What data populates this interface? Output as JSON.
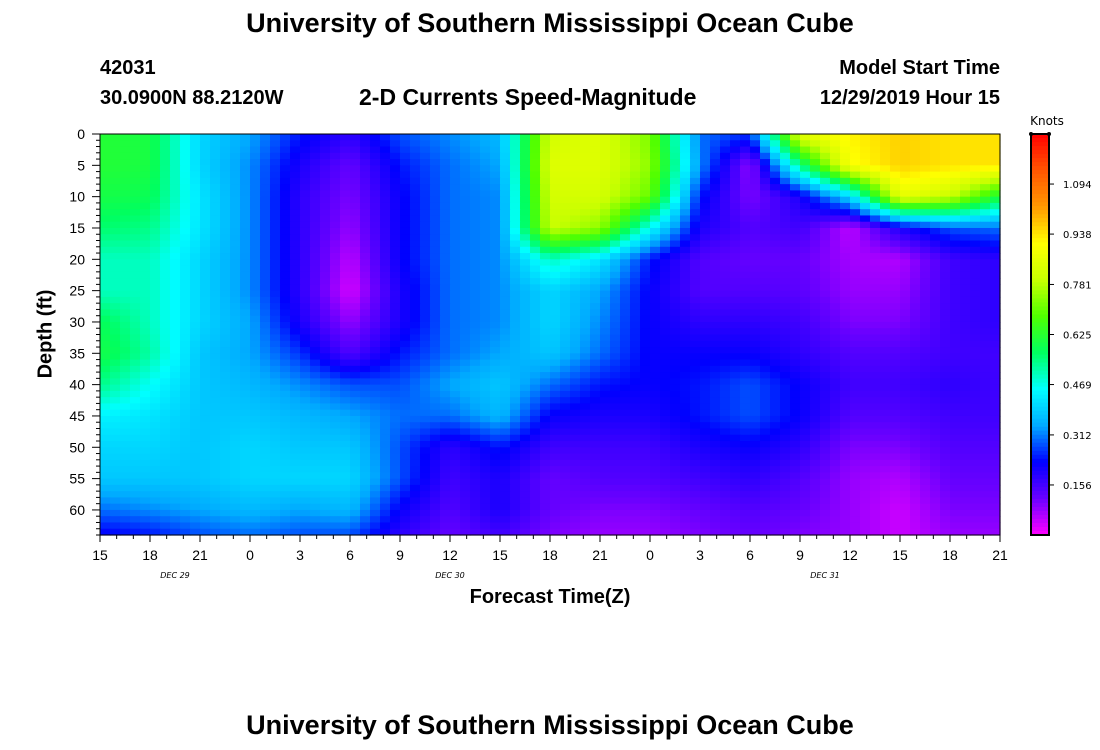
{
  "page_title": "University of Southern Mississippi Ocean Cube",
  "footer_title": "University of Southern Mississippi Ocean Cube",
  "station": {
    "id": "42031",
    "location": "30.0900N 88.2120W"
  },
  "plot_title": "2-D Currents Speed-Magnitude",
  "model": {
    "label": "Model Start Time",
    "value": "12/29/2019 Hour 15"
  },
  "chart_data": {
    "type": "heatmap",
    "title": "2-D Currents Speed-Magnitude",
    "xlabel": "Forecast Time(Z)",
    "ylabel": "Depth (ft)",
    "x_ticks": [
      "15",
      "18",
      "21",
      "0",
      "3",
      "6",
      "9",
      "12",
      "15",
      "18",
      "21",
      "0",
      "3",
      "6",
      "9",
      "12",
      "15",
      "18",
      "21"
    ],
    "x_hours_since_start": [
      0,
      3,
      6,
      9,
      12,
      15,
      18,
      21,
      24,
      27,
      30,
      33,
      36,
      39,
      42,
      45,
      48,
      51,
      54
    ],
    "xlim_hours": [
      0,
      54
    ],
    "date_labels": [
      {
        "text": "DEC  29",
        "hour": 4.5
      },
      {
        "text": "DEC  30",
        "hour": 21
      },
      {
        "text": "DEC  31",
        "hour": 43.5
      }
    ],
    "y_ticks": [
      0,
      5,
      10,
      15,
      20,
      25,
      30,
      35,
      40,
      45,
      50,
      55,
      60
    ],
    "ylim": [
      0,
      64
    ],
    "y_inverted": true,
    "colorbar": {
      "title": "Knots",
      "ticks": [
        "1.094",
        "0.938",
        "0.781",
        "0.625",
        "0.469",
        "0.312",
        "0.156"
      ],
      "tick_values": [
        1.094,
        0.938,
        0.781,
        0.625,
        0.469,
        0.312,
        0.156
      ],
      "range": [
        0.0,
        1.25
      ],
      "colors": [
        "#ff00ff",
        "#6a00ff",
        "#0000ff",
        "#00aaff",
        "#00ffff",
        "#00ff60",
        "#50ff00",
        "#c8ff00",
        "#ffff00",
        "#ff9900",
        "#ff5500",
        "#ff0000"
      ]
    },
    "sample_depths_ft": [
      0,
      5,
      10,
      15,
      20,
      25,
      30,
      35,
      40,
      45,
      50,
      55,
      60,
      64
    ],
    "sample_hours": [
      0,
      3,
      6,
      9,
      12,
      15,
      18,
      21,
      24,
      27,
      30,
      33,
      36,
      39,
      42,
      45,
      48,
      51,
      54
    ],
    "grid_knots": [
      [
        0.62,
        0.6,
        0.4,
        0.34,
        0.24,
        0.18,
        0.28,
        0.32,
        0.36,
        0.82,
        0.84,
        0.72,
        0.3,
        0.26,
        0.86,
        0.92,
        0.96,
        0.94,
        0.94
      ],
      [
        0.62,
        0.6,
        0.4,
        0.32,
        0.2,
        0.12,
        0.24,
        0.3,
        0.34,
        0.84,
        0.84,
        0.74,
        0.32,
        0.08,
        0.54,
        0.9,
        0.96,
        0.94,
        0.94
      ],
      [
        0.6,
        0.58,
        0.42,
        0.32,
        0.18,
        0.1,
        0.22,
        0.3,
        0.32,
        0.82,
        0.82,
        0.7,
        0.24,
        0.1,
        0.2,
        0.4,
        0.86,
        0.8,
        0.6
      ],
      [
        0.56,
        0.54,
        0.42,
        0.32,
        0.18,
        0.08,
        0.22,
        0.3,
        0.32,
        0.8,
        0.74,
        0.46,
        0.2,
        0.14,
        0.16,
        0.05,
        0.2,
        0.28,
        0.3
      ],
      [
        0.5,
        0.5,
        0.4,
        0.32,
        0.18,
        0.05,
        0.22,
        0.3,
        0.32,
        0.5,
        0.42,
        0.24,
        0.14,
        0.12,
        0.12,
        0.07,
        0.06,
        0.16,
        0.18
      ],
      [
        0.5,
        0.5,
        0.4,
        0.32,
        0.18,
        0.03,
        0.2,
        0.3,
        0.32,
        0.4,
        0.34,
        0.22,
        0.14,
        0.14,
        0.13,
        0.08,
        0.08,
        0.16,
        0.18
      ],
      [
        0.58,
        0.5,
        0.4,
        0.34,
        0.2,
        0.08,
        0.2,
        0.3,
        0.32,
        0.4,
        0.32,
        0.22,
        0.18,
        0.18,
        0.16,
        0.1,
        0.1,
        0.16,
        0.18
      ],
      [
        0.6,
        0.52,
        0.38,
        0.34,
        0.26,
        0.14,
        0.24,
        0.3,
        0.34,
        0.38,
        0.3,
        0.22,
        0.22,
        0.22,
        0.18,
        0.14,
        0.14,
        0.16,
        0.16
      ],
      [
        0.54,
        0.46,
        0.38,
        0.36,
        0.32,
        0.28,
        0.28,
        0.34,
        0.38,
        0.3,
        0.24,
        0.22,
        0.24,
        0.28,
        0.22,
        0.16,
        0.16,
        0.18,
        0.16
      ],
      [
        0.44,
        0.42,
        0.38,
        0.38,
        0.36,
        0.34,
        0.3,
        0.3,
        0.36,
        0.22,
        0.2,
        0.2,
        0.24,
        0.28,
        0.22,
        0.14,
        0.14,
        0.16,
        0.16
      ],
      [
        0.4,
        0.4,
        0.38,
        0.4,
        0.38,
        0.38,
        0.28,
        0.18,
        0.24,
        0.16,
        0.16,
        0.16,
        0.2,
        0.22,
        0.18,
        0.1,
        0.1,
        0.14,
        0.14
      ],
      [
        0.38,
        0.38,
        0.38,
        0.4,
        0.4,
        0.4,
        0.28,
        0.16,
        0.2,
        0.12,
        0.14,
        0.14,
        0.16,
        0.18,
        0.14,
        0.08,
        0.06,
        0.12,
        0.12
      ],
      [
        0.3,
        0.32,
        0.34,
        0.36,
        0.34,
        0.36,
        0.22,
        0.14,
        0.2,
        0.12,
        0.1,
        0.1,
        0.12,
        0.14,
        0.12,
        0.08,
        0.04,
        0.1,
        0.1
      ],
      [
        0.22,
        0.24,
        0.28,
        0.3,
        0.28,
        0.28,
        0.18,
        0.12,
        0.16,
        0.1,
        0.08,
        0.08,
        0.1,
        0.12,
        0.1,
        0.08,
        0.04,
        0.08,
        0.08
      ]
    ]
  }
}
